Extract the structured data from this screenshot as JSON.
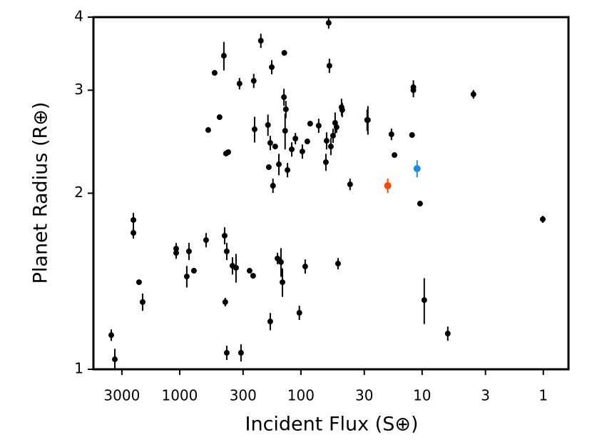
{
  "chart_data": {
    "type": "scatter",
    "x_label": "Incident Flux (S⊕)",
    "y_label": "Planet Radius (R⊕)",
    "xscale": "log",
    "yscale": "log",
    "xlim": [
      5150,
      0.62
    ],
    "ylim": [
      1,
      4
    ],
    "xticks": [
      3000,
      1000,
      300,
      100,
      30,
      10,
      3,
      1
    ],
    "yticks": [
      1,
      2,
      3,
      4
    ],
    "series": [
      {
        "color": "#000000",
        "x": [
          3670,
          3430,
          2410,
          2410,
          2165,
          2023,
          1070,
          1070,
          839,
          874,
          763,
          606,
          582,
          515,
          469,
          432,
          426,
          421,
          409,
          409,
          398,
          415,
          367,
          343,
          321,
          312,
          265,
          248,
          245,
          241,
          214,
          187,
          184,
          179,
          179,
          174,
          170,
          163,
          156,
          152,
          146,
          142,
          137,
          138,
          135,
          133,
          129,
          119,
          111,
          103,
          97.3,
          92.2,
          88.5,
          83.9,
          71.3,
          62.2,
          61.4,
          59.0,
          58.2,
          56.6,
          54.3,
          52.2,
          50.8,
          49.4,
          46.2,
          45.6,
          39.3,
          28.4,
          28.0,
          17.9,
          16.9,
          12.1,
          11.8,
          11.8,
          10.4,
          9.6,
          6.14,
          3.77,
          1.01
        ],
        "values": [
          1.144,
          1.04,
          1.8,
          1.711,
          1.409,
          1.303,
          1.608,
          1.581,
          1.591,
          1.441,
          1.474,
          1.663,
          2.565,
          3.212,
          2.698,
          3.436,
          1.692,
          1.303,
          1.591,
          1.067,
          2.351,
          2.338,
          1.503,
          1.491,
          3.079,
          1.067,
          1.474,
          1.445,
          3.113,
          2.572,
          3.645,
          2.616,
          2.216,
          1.207,
          2.438,
          3.285,
          2.06,
          2.404,
          1.547,
          2.241,
          1.525,
          1.409,
          3.475,
          2.919,
          2.557,
          2.783,
          2.191,
          2.377,
          2.48,
          1.249,
          2.357,
          1.499,
          2.452,
          2.63,
          2.609,
          2.26,
          2.459,
          3.91,
          3.303,
          2.404,
          2.508,
          2.638,
          2.594,
          1.516,
          2.806,
          2.775,
          2.071,
          2.668,
          2.668,
          2.522,
          2.324,
          2.515,
          3.035,
          3.001,
          1.92,
          1.313,
          1.151,
          2.952,
          1.805
        ],
        "yerr": [
          0.026,
          0.044,
          0.051,
          0.038,
          0,
          0.044,
          0.036,
          0.036,
          0.054,
          0.061,
          0,
          0.047,
          0,
          0,
          0,
          0.193,
          0.057,
          0.022,
          0.054,
          0.03,
          0,
          0,
          0.051,
          0.084,
          0.069,
          0.036,
          0,
          0,
          0.087,
          0.13,
          0.102,
          0.11,
          0,
          0.041,
          0.069,
          0.092,
          0.058,
          0,
          0.035,
          0.094,
          0.086,
          0.079,
          0,
          0.098,
          0.18,
          0.094,
          0.062,
          0.067,
          0.056,
          0.035,
          0.066,
          0.042,
          0,
          0,
          0.073,
          0.076,
          0.083,
          0.088,
          0.093,
          0.081,
          0.07,
          0.111,
          0.058,
          0.034,
          0.095,
          0.078,
          0.047,
          0.112,
          0.15,
          0.057,
          0,
          0,
          0.085,
          0.084,
          0,
          0.118,
          0.032,
          0.05,
          0.025
        ]
      },
      {
        "color": "#ff4500",
        "x": [
          19.2
        ],
        "values": [
          2.06
        ],
        "yerr": [
          0.058
        ]
      },
      {
        "color": "#1e88e5",
        "x": [
          11.0
        ],
        "values": [
          2.203
        ],
        "yerr": [
          0.074
        ]
      }
    ]
  }
}
